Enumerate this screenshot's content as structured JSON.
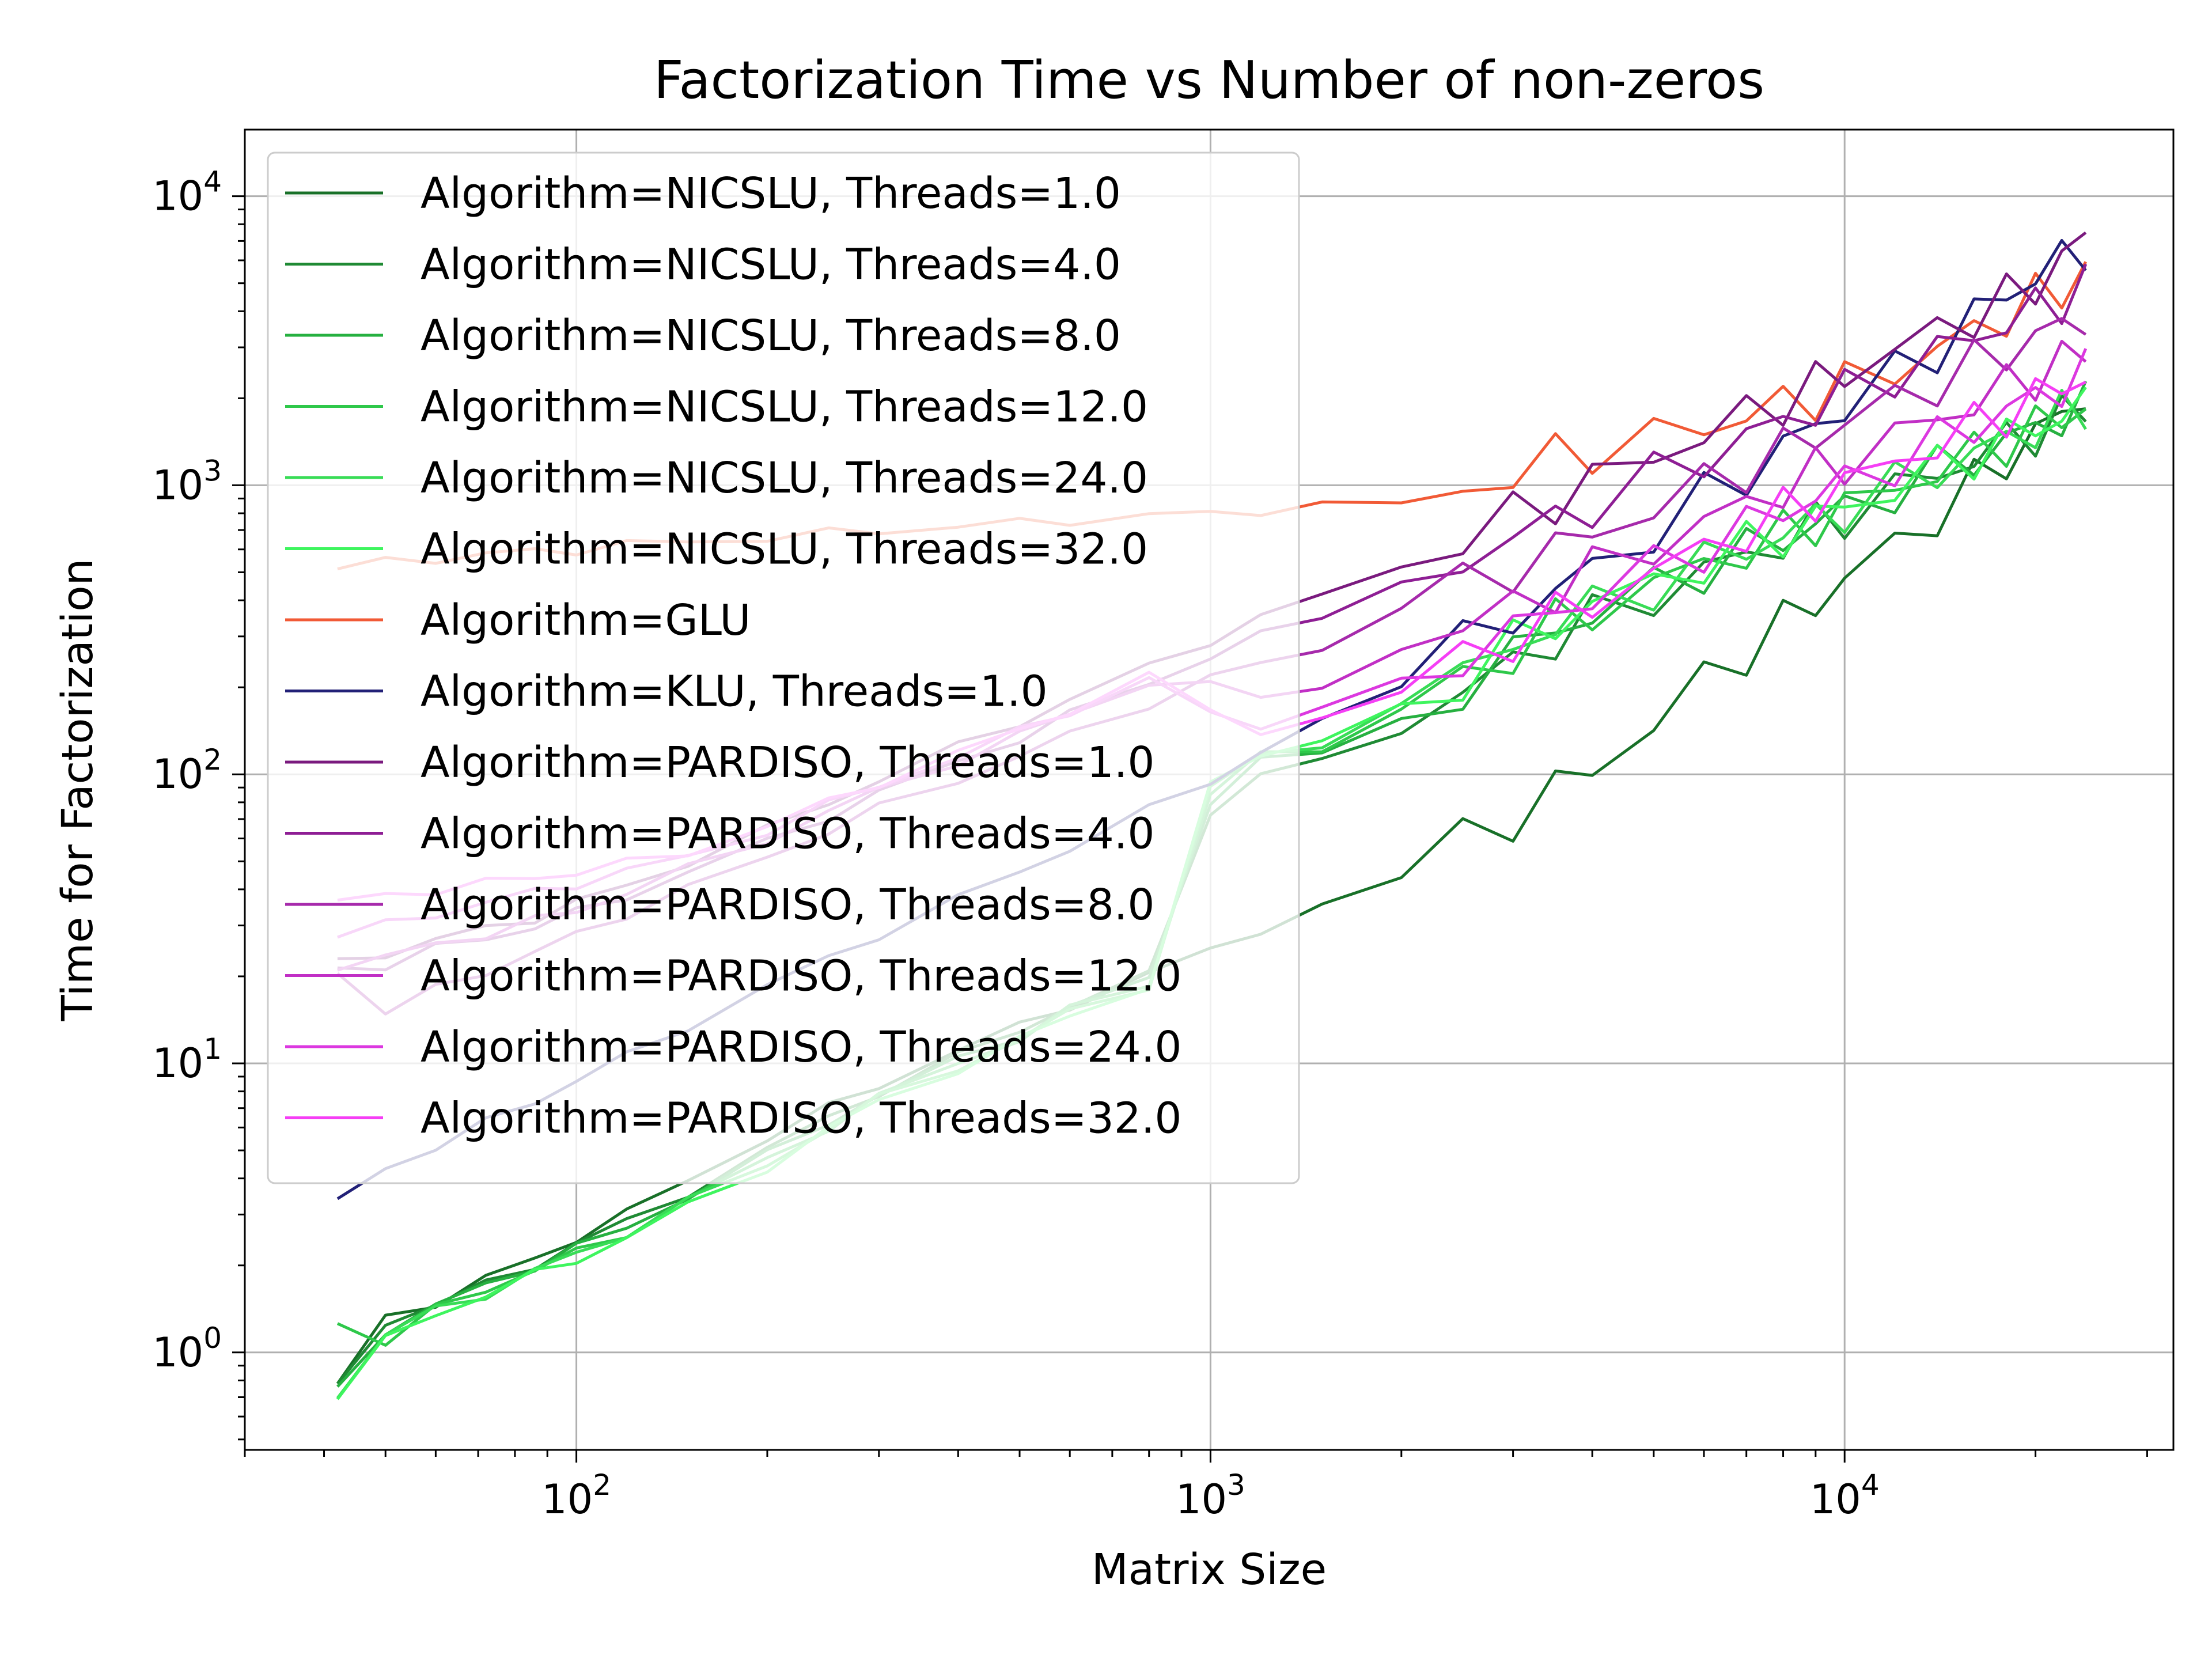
{
  "chart_data": {
    "type": "line",
    "title": "Factorization Time vs Number of non-zeros",
    "xlabel": "Matrix Size",
    "ylabel": "Time for Factorization",
    "xscale": "log",
    "yscale": "log",
    "xlim": [
      30,
      33000
    ],
    "ylim": [
      0.46,
      17000
    ],
    "xticks": [
      {
        "value": 100,
        "base": "10",
        "exp": "2"
      },
      {
        "value": 1000,
        "base": "10",
        "exp": "3"
      },
      {
        "value": 10000,
        "base": "10",
        "exp": "4"
      }
    ],
    "yticks": [
      {
        "value": 1,
        "base": "10",
        "exp": "0"
      },
      {
        "value": 10,
        "base": "10",
        "exp": "1"
      },
      {
        "value": 100,
        "base": "10",
        "exp": "2"
      },
      {
        "value": 1000,
        "base": "10",
        "exp": "3"
      },
      {
        "value": 10000,
        "base": "10",
        "exp": "4"
      }
    ],
    "grid": true,
    "legend_position": "upper-left",
    "x": [
      42,
      50,
      60,
      72,
      86,
      100,
      120,
      150,
      200,
      250,
      300,
      400,
      500,
      600,
      800,
      1000,
      1200,
      1500,
      2000,
      2500,
      3000,
      3500,
      4000,
      5000,
      6000,
      7000,
      8000,
      9000,
      10000,
      12000,
      14000,
      16000,
      18000,
      20000,
      22000,
      24000
    ],
    "series": [
      {
        "name": "Algorithm=NICSLU, Threads=1.0",
        "color": "#187028",
        "values": [
          0.78,
          1.3,
          1.5,
          1.8,
          2.1,
          2.5,
          3.0,
          4.0,
          5.5,
          7.0,
          8.5,
          11,
          13.5,
          16,
          20,
          25,
          29,
          34,
          45,
          58,
          72,
          88,
          105,
          150,
          210,
          270,
          330,
          400,
          470,
          620,
          800,
          1000,
          1250,
          1500,
          1750,
          2100
        ]
      },
      {
        "name": "Algorithm=NICSLU, Threads=4.0",
        "color": "#1f8a34",
        "values": [
          0.75,
          1.25,
          1.5,
          1.7,
          2.0,
          2.4,
          2.8,
          3.6,
          5.0,
          6.5,
          8.0,
          10.5,
          13,
          16,
          20,
          75,
          100,
          110,
          145,
          190,
          240,
          300,
          340,
          420,
          500,
          570,
          640,
          720,
          800,
          950,
          1100,
          1250,
          1400,
          1550,
          1700,
          1850
        ]
      },
      {
        "name": "Algorithm=NICSLU, Threads=8.0",
        "color": "#26b040",
        "values": [
          0.73,
          1.2,
          1.45,
          1.7,
          2.0,
          2.3,
          2.7,
          3.5,
          4.8,
          6.3,
          7.8,
          10.2,
          12.6,
          15.5,
          19.5,
          82,
          110,
          120,
          160,
          205,
          260,
          320,
          360,
          440,
          520,
          590,
          660,
          740,
          820,
          970,
          1120,
          1270,
          1420,
          1570,
          1720,
          1870
        ]
      },
      {
        "name": "Algorithm=NICSLU, Threads=12.0",
        "color": "#2ec84a",
        "values": [
          1.25,
          1.1,
          1.4,
          1.65,
          1.95,
          2.2,
          2.6,
          3.4,
          4.6,
          6.1,
          7.6,
          10,
          12.3,
          15.2,
          19,
          86,
          115,
          125,
          165,
          210,
          270,
          330,
          370,
          450,
          530,
          600,
          670,
          750,
          830,
          980,
          1130,
          1280,
          1430,
          1580,
          1730,
          1880
        ]
      },
      {
        "name": "Algorithm=NICSLU, Threads=24.0",
        "color": "#38dc56",
        "values": [
          0.72,
          1.15,
          1.4,
          1.6,
          1.9,
          2.2,
          2.6,
          3.3,
          4.5,
          6.0,
          7.5,
          9.8,
          12.1,
          15,
          18.8,
          88,
          118,
          128,
          168,
          215,
          275,
          335,
          375,
          455,
          535,
          605,
          675,
          755,
          835,
          985,
          1135,
          1285,
          1435,
          1585,
          1735,
          1885
        ]
      },
      {
        "name": "Algorithm=NICSLU, Threads=32.0",
        "color": "#3ef55e",
        "values": [
          0.72,
          1.1,
          1.35,
          1.6,
          1.85,
          2.1,
          2.5,
          3.2,
          4.4,
          5.9,
          7.4,
          9.6,
          11.9,
          14.8,
          18.5,
          90,
          120,
          130,
          170,
          220,
          280,
          340,
          380,
          460,
          540,
          610,
          680,
          760,
          840,
          990,
          1140,
          1290,
          1440,
          1590,
          1740,
          1890
        ]
      },
      {
        "name": "Algorithm=GLU",
        "color": "#f15a36",
        "values": [
          520,
          540,
          560,
          575,
          590,
          600,
          620,
          640,
          660,
          680,
          700,
          720,
          740,
          760,
          780,
          800,
          820,
          840,
          880,
          950,
          1100,
          1250,
          1350,
          1450,
          1600,
          1750,
          1900,
          2050,
          2200,
          2550,
          2950,
          3400,
          3900,
          4400,
          4900,
          5400
        ]
      },
      {
        "name": "Algorithm=KLU, Threads=1.0",
        "color": "#222077",
        "values": [
          3.3,
          4.3,
          5.2,
          6.2,
          7.4,
          8.8,
          10.5,
          13.5,
          18.5,
          23,
          28,
          37,
          46,
          56,
          75,
          95,
          120,
          150,
          210,
          280,
          350,
          430,
          510,
          700,
          900,
          1100,
          1350,
          1600,
          1900,
          2400,
          3000,
          3800,
          4600,
          5300,
          6000,
          6800
        ]
      },
      {
        "name": "Algorithm=PARDISO, Threads=1.0",
        "color": "#7a1a7e",
        "values": [
          22,
          24,
          27,
          29,
          32,
          36,
          41,
          50,
          64,
          80,
          96,
          124,
          152,
          180,
          236,
          292,
          345,
          420,
          540,
          660,
          780,
          900,
          1020,
          1260,
          1500,
          1740,
          1980,
          2220,
          2460,
          2940,
          3420,
          3900,
          4380,
          5000,
          6000,
          7200
        ]
      },
      {
        "name": "Algorithm=PARDISO, Threads=4.0",
        "color": "#8e1e94",
        "values": [
          21,
          22,
          25,
          27,
          30,
          33,
          38,
          46,
          58,
          72,
          86,
          110,
          134,
          160,
          208,
          256,
          300,
          360,
          460,
          560,
          660,
          760,
          860,
          1060,
          1260,
          1460,
          1660,
          1860,
          2060,
          2460,
          2860,
          3260,
          3660,
          4060,
          4460,
          4860
        ]
      },
      {
        "name": "Algorithm=PARDISO, Threads=8.0",
        "color": "#a62aab",
        "values": [
          21,
          15,
          18,
          21,
          24,
          28,
          33,
          40,
          52,
          64,
          76,
          96,
          116,
          136,
          176,
          216,
          240,
          280,
          360,
          440,
          520,
          600,
          680,
          840,
          1000,
          1160,
          1320,
          1480,
          1640,
          1960,
          2280,
          2600,
          2920,
          3240,
          3560,
          3880
        ]
      },
      {
        "name": "Algorithm=PARDISO, Threads=12.0",
        "color": "#c12fc5",
        "values": [
          22,
          23,
          26,
          28,
          31,
          34,
          39,
          47,
          60,
          74,
          88,
          112,
          136,
          162,
          210,
          200,
          190,
          200,
          260,
          320,
          380,
          440,
          500,
          620,
          740,
          860,
          980,
          1100,
          1220,
          1460,
          1700,
          1940,
          2180,
          2420,
          2660,
          2900
        ]
      },
      {
        "name": "Algorithm=PARDISO, Threads=24.0",
        "color": "#dc38e0",
        "values": [
          28,
          30,
          33,
          36,
          39,
          42,
          46,
          52,
          64,
          78,
          92,
          116,
          140,
          166,
          214,
          160,
          150,
          165,
          215,
          265,
          315,
          365,
          415,
          515,
          615,
          715,
          815,
          915,
          1015,
          1215,
          1415,
          1615,
          1815,
          2015,
          2215,
          2415
        ]
      },
      {
        "name": "Algorithm=PARDISO, Threads=32.0",
        "color": "#f53ef5",
        "values": [
          36,
          38,
          40,
          42,
          44,
          46,
          49,
          54,
          66,
          80,
          94,
          118,
          142,
          168,
          216,
          170,
          140,
          150,
          200,
          250,
          300,
          350,
          400,
          500,
          600,
          700,
          800,
          900,
          1000,
          1200,
          1400,
          1600,
          1800,
          2000,
          2200,
          2400
        ]
      }
    ]
  }
}
